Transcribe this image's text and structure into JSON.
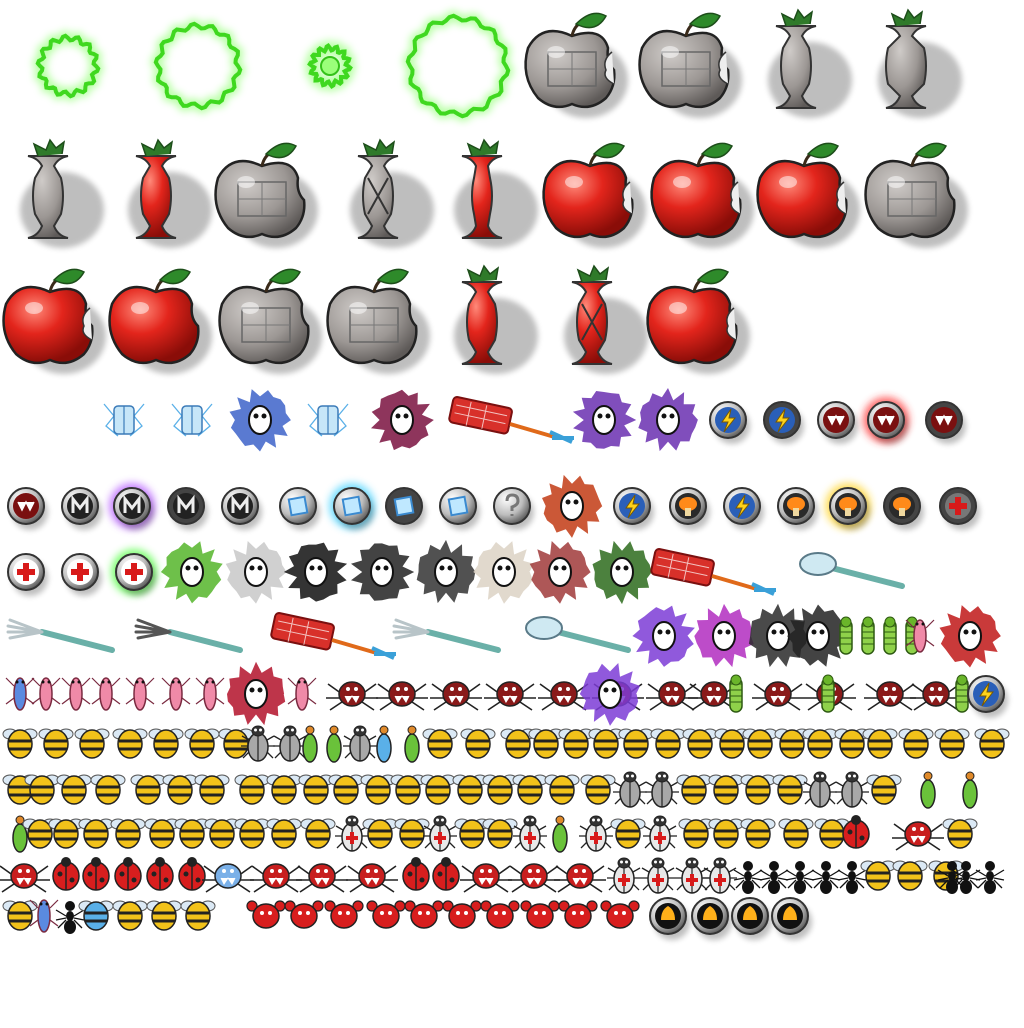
{
  "sheet": {
    "kind": "sprite-atlas",
    "background": "#ffffff",
    "row_kinds": [
      [
        "glow-ring",
        "glow-ring",
        "glow-orb",
        "glow-ring",
        "steel-apple",
        "steel-apple",
        "steel-core",
        "steel-core-wide"
      ],
      [
        "steel-core",
        "red-core",
        "steel-apple-leaf",
        "steel-core-x",
        "red-core-thin",
        "red-apple",
        "red-apple",
        "red-apple",
        "steel-apple-leaf"
      ],
      [
        "red-apple-bitten",
        "red-apple-whole",
        "steel-apple-leaf",
        "steel-apple-leaf",
        "red-core",
        "red-core-x",
        "red-apple-bitten"
      ],
      [
        "shock-bug",
        "shock-bug",
        "splat-bug-blue",
        "shock-bug-alt",
        "splat-spider",
        "swatter-red",
        "splat-bug-green",
        "splat-snail",
        "badge-lightning",
        "badge-lightning-dark",
        "badge-mouth",
        "badge-mouth-glow",
        "badge-mouth-dark"
      ],
      [
        "badge-mouth",
        "badge-m",
        "badge-m-glow",
        "badge-m-dark",
        "badge-m",
        "badge-ice",
        "badge-ice-glow",
        "badge-ice-dark",
        "badge-ice",
        "badge-question",
        "splat-orange",
        "badge-lightning",
        "badge-bomb",
        "badge-lightning",
        "badge-bomb",
        "badge-bomb-glow",
        "badge-bomb-dark",
        "badge-cross-dark"
      ],
      [
        "badge-cross",
        "badge-cross",
        "badge-cross-glow",
        "splat-frog",
        "splat-shield",
        "splat-color",
        "splat-lightning",
        "splat-beetle",
        "splat-plant",
        "splat-pink",
        "splat-bee",
        "swatter-red",
        "spoon"
      ],
      [
        "fork",
        "fork-dark",
        "swatter-red",
        "fork",
        "spoon",
        "splat-purple",
        "splat-magenta",
        "splat-mouth",
        "splat-ghost",
        "larva",
        "larva",
        "larva",
        "larva",
        "shrimp-pink",
        "splat-spider-red"
      ],
      [
        "shrimp-blue",
        "shrimp-pink",
        "shrimp-pink",
        "shrimp-pink",
        "shrimp-pink",
        "shrimp-pink",
        "shrimp-pink",
        "splat-red",
        "shrimp-pink",
        "spider-mouth",
        "spider-mouth",
        "spider-mouth",
        "spider-mouth",
        "spider-mouth",
        "spider-mouth",
        "spider-mouth",
        "splat-purple",
        "spider-mouth",
        "larva",
        "spider-mouth",
        "spider-mouth",
        "larva",
        "spider-mouth",
        "spider-mouth",
        "larva",
        "badge-lightning-small"
      ],
      [
        "beetle-lightning",
        "beetle-lightning",
        "beetle-lightning",
        "beetle-lightning",
        "beetle-lightning",
        "beetle-lightning",
        "beetle-lightning",
        "robot-beetle",
        "robot-beetle",
        "pod-green",
        "pod-green",
        "robot-beetle",
        "pod-blue",
        "pod-green",
        "beetle-red",
        "beetle-green",
        "beetle-brown",
        "beetle-green",
        "beetle-brown",
        "beetle-green",
        "beetle-brown",
        "beetle-quad",
        "beetle-quad",
        "beetle-brown",
        "beetle-red",
        "beetle-red",
        "beetle-quad",
        "beetle-quad",
        "beetle-red",
        "beetle-green",
        "beetle-green",
        "beetle-blue"
      ],
      [
        "beetle-brown",
        "beetle-red",
        "beetle-teal",
        "beetle-green",
        "beetle-blue",
        "beetle-green",
        "beetle-green",
        "beetle-quad",
        "beetle-red",
        "beetle-brown",
        "beetle-blue",
        "beetle-blue-robo",
        "beetle-blue-robo",
        "beetle-blue-robo",
        "beetle-quad",
        "beetle-quad",
        "beetle-quad",
        "beetle-brown",
        "beetle-blue-robo",
        "robot-beetle",
        "robot-beetle",
        "beetle-red",
        "beetle-brown",
        "beetle-red",
        "beetle-purple",
        "robot-beetle",
        "robot-beetle",
        "beetle-red",
        "pod-green",
        "pod-green"
      ],
      [
        "pod-green",
        "beetle-grey",
        "beetle-grey",
        "beetle-grey-small",
        "beetle-dark",
        "beetle-dark",
        "beetle-grey",
        "beetle-dark",
        "beetle-dark",
        "beetle-dark",
        "beetle-dark",
        "medic-beetle",
        "beetle-grey-small",
        "beetle-grey-small",
        "medic-beetle",
        "beetle-dark",
        "beetle-grey-small",
        "medic-beetle",
        "pod-green",
        "medic-beetle",
        "beetle-grey-small",
        "medic-beetle",
        "beetle-dark",
        "beetle-blue",
        "beetle-blue",
        "beetle-blue",
        "beetle-blue",
        "ladybug",
        "spider-red",
        "beetle-purple"
      ],
      [
        "spider-red",
        "ladybug",
        "ladybug",
        "ladybug",
        "ladybug",
        "ladybug",
        "spider-blue",
        "spider-red",
        "spider-red",
        "spider-red",
        "ladybug",
        "ladybug",
        "spider-red",
        "spider-red",
        "spider-red",
        "medic-beetle",
        "medic-beetle",
        "medic-beetle",
        "medic-beetle",
        "ant",
        "ant",
        "ant",
        "ant",
        "ant",
        "bee",
        "bee",
        "bee",
        "ant",
        "ant",
        "ant"
      ],
      [
        "bee",
        "shrimp-blue",
        "ant",
        "bee-blue",
        "bee",
        "bee",
        "bee",
        "crab",
        "crab",
        "crab",
        "crab",
        "crab",
        "crab",
        "crab",
        "crab",
        "crab",
        "crab",
        "badge-fire",
        "badge-fire",
        "badge-fire",
        "badge-fire"
      ]
    ]
  }
}
